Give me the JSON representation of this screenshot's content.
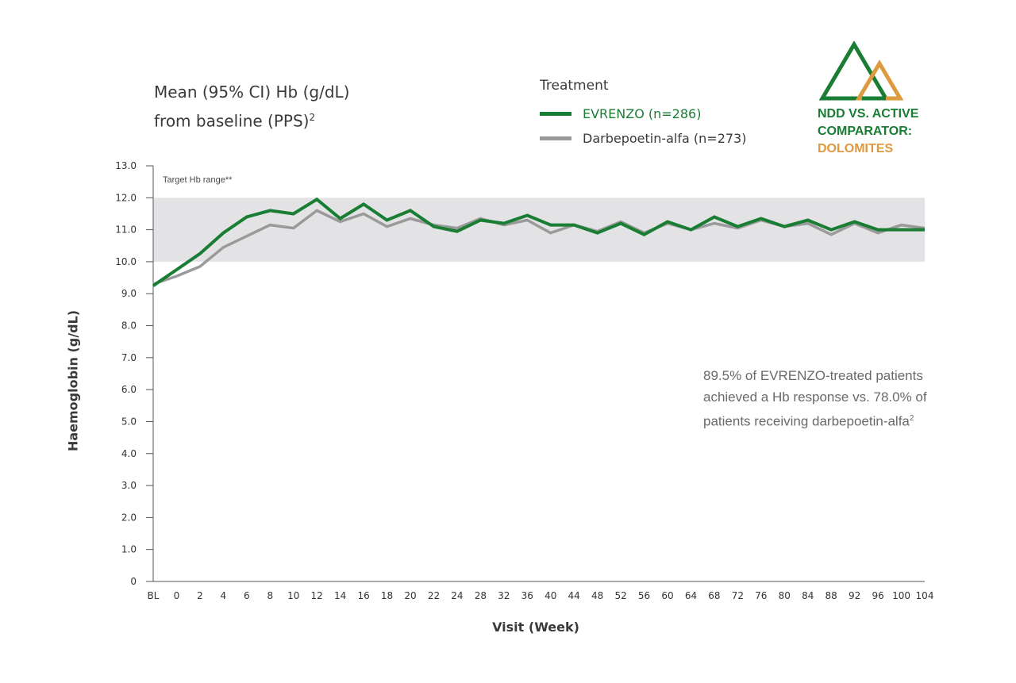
{
  "chart_data": {
    "type": "line",
    "title_line1": "Mean (95% CI) Hb (g/dL)",
    "title_line2": "from baseline (PPS)",
    "title_sup": "2",
    "xlabel": "Visit (Week)",
    "ylabel": "Haemoglobin (g/dL)",
    "ylim": [
      0,
      13
    ],
    "yticks": [
      "0",
      "1.0",
      "2.0",
      "3.0",
      "4.0",
      "5.0",
      "6.0",
      "7.0",
      "8.0",
      "9.0",
      "10.0",
      "11.0",
      "12.0",
      "13.0"
    ],
    "categories": [
      "BL",
      "0",
      "2",
      "4",
      "6",
      "8",
      "10",
      "12",
      "14",
      "16",
      "18",
      "20",
      "22",
      "24",
      "28",
      "32",
      "36",
      "40",
      "44",
      "48",
      "52",
      "56",
      "60",
      "64",
      "68",
      "72",
      "76",
      "80",
      "84",
      "88",
      "92",
      "96",
      "100",
      "104"
    ],
    "target_range": {
      "label": "Target Hb range**",
      "low": 10.0,
      "high": 12.0
    },
    "legend_title": "Treatment",
    "series": [
      {
        "name": "Darbepoetin-alfa (n=273)",
        "color": "#9a9a9a",
        "values": [
          9.3,
          9.55,
          9.85,
          10.45,
          10.8,
          11.15,
          11.05,
          11.6,
          11.25,
          11.5,
          11.1,
          11.35,
          11.15,
          11.05,
          11.35,
          11.15,
          11.3,
          10.9,
          11.15,
          10.95,
          11.25,
          10.9,
          11.2,
          11.0,
          11.2,
          11.05,
          11.3,
          11.1,
          11.2,
          10.85,
          11.2,
          10.9,
          11.15,
          11.05
        ]
      },
      {
        "name": "EVRENZO (n=286)",
        "color": "#1a7d34",
        "values": [
          9.25,
          9.75,
          10.25,
          10.9,
          11.4,
          11.6,
          11.5,
          11.95,
          11.35,
          11.8,
          11.3,
          11.6,
          11.1,
          10.95,
          11.3,
          11.2,
          11.45,
          11.15,
          11.15,
          10.9,
          11.2,
          10.85,
          11.25,
          11.0,
          11.4,
          11.1,
          11.35,
          11.1,
          11.3,
          11.0,
          11.25,
          11.0,
          11.0,
          11.0
        ]
      }
    ]
  },
  "badge": {
    "line1": "NDD VS. ACTIVE",
    "line2": "COMPARATOR:",
    "line3": "DOLOMITES",
    "green": "#1a7d34",
    "orange": "#de9a3f"
  },
  "note": {
    "text": "89.5% of EVRENZO-treated patients achieved a Hb response vs. 78.0% of patients receiving darbepoetin-alfa",
    "sup": "2"
  }
}
